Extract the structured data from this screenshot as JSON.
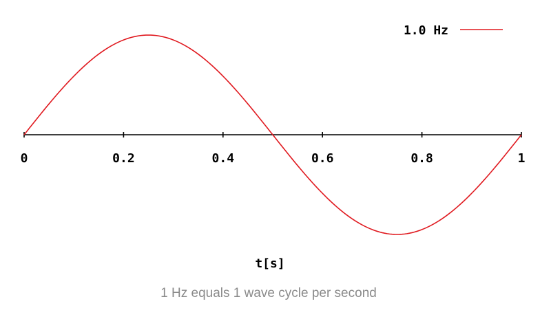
{
  "chart_data": {
    "type": "line",
    "xlabel": "t[s]",
    "ylabel": "",
    "xlim": [
      0,
      1
    ],
    "ylim": [
      -1,
      1
    ],
    "x_ticks": [
      "0",
      "0.2",
      "0.4",
      "0.6",
      "0.8",
      "1"
    ],
    "x_tick_values": [
      0,
      0.2,
      0.4,
      0.6,
      0.8,
      1
    ],
    "grid": false,
    "legend_position": "top-right",
    "series": [
      {
        "name": "1.0 Hz",
        "color": "#e0191f",
        "x": [
          0,
          0.05,
          0.1,
          0.15,
          0.2,
          0.25,
          0.3,
          0.35,
          0.4,
          0.45,
          0.5,
          0.55,
          0.6,
          0.65,
          0.7,
          0.75,
          0.8,
          0.85,
          0.9,
          0.95,
          1.0
        ],
        "y": [
          0,
          0.309,
          0.588,
          0.809,
          0.951,
          1.0,
          0.951,
          0.809,
          0.588,
          0.309,
          0,
          -0.309,
          -0.588,
          -0.809,
          -0.951,
          -1.0,
          -0.951,
          -0.809,
          -0.588,
          -0.309,
          0
        ]
      }
    ]
  },
  "caption": "1 Hz equals 1 wave cycle per second"
}
